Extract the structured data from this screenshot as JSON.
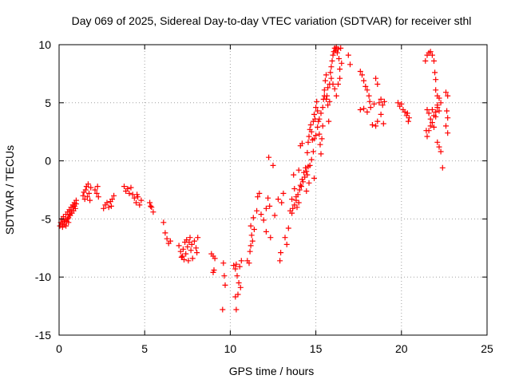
{
  "chart_data": {
    "type": "scatter",
    "title": "Day 069 of 2025, Sidereal Day-to-day VTEC variation (SDTVAR) for receiver sthl",
    "xlabel": "GPS time / hours",
    "ylabel": "SDTVAR / TECUs",
    "xlim": [
      0,
      25
    ],
    "ylim": [
      -15,
      10
    ],
    "grid": true,
    "x_ticks": [
      0,
      5,
      10,
      15,
      20,
      25
    ],
    "y_ticks": [
      -15,
      -10,
      -5,
      0,
      5,
      10
    ],
    "x_tick_labels": [
      "0",
      "5",
      "10",
      "15",
      "20",
      "25"
    ],
    "y_tick_labels": [
      "-15",
      "-10",
      "-5",
      "0",
      "5",
      "10"
    ],
    "marker": "plus",
    "color": "#ff0000",
    "series": [
      {
        "name": "SDTVAR",
        "points": [
          [
            0.05,
            -5.6
          ],
          [
            0.1,
            -5.3
          ],
          [
            0.15,
            -5.0
          ],
          [
            0.2,
            -5.4
          ],
          [
            0.25,
            -4.8
          ],
          [
            0.3,
            -5.5
          ],
          [
            0.35,
            -5.1
          ],
          [
            0.4,
            -4.6
          ],
          [
            0.45,
            -5.2
          ],
          [
            0.5,
            -4.4
          ],
          [
            0.55,
            -4.9
          ],
          [
            0.6,
            -4.2
          ],
          [
            0.65,
            -4.7
          ],
          [
            0.7,
            -4.0
          ],
          [
            0.75,
            -4.5
          ],
          [
            0.8,
            -3.8
          ],
          [
            0.85,
            -4.3
          ],
          [
            0.9,
            -3.6
          ],
          [
            0.95,
            -4.1
          ],
          [
            1.0,
            -3.4
          ],
          [
            0.2,
            -5.7
          ],
          [
            0.3,
            -5.2
          ],
          [
            0.5,
            -5.0
          ],
          [
            0.6,
            -4.6
          ],
          [
            0.7,
            -4.3
          ],
          [
            0.8,
            -4.0
          ],
          [
            0.9,
            -3.9
          ],
          [
            1.0,
            -3.7
          ],
          [
            0.4,
            -5.6
          ],
          [
            0.55,
            -5.3
          ],
          [
            1.4,
            -3.0
          ],
          [
            1.45,
            -2.7
          ],
          [
            1.5,
            -3.3
          ],
          [
            1.55,
            -2.5
          ],
          [
            1.6,
            -2.2
          ],
          [
            1.65,
            -3.1
          ],
          [
            1.7,
            -2.0
          ],
          [
            1.75,
            -2.8
          ],
          [
            1.8,
            -3.4
          ],
          [
            1.85,
            -2.3
          ],
          [
            2.1,
            -2.5
          ],
          [
            2.2,
            -2.8
          ],
          [
            2.3,
            -3.1
          ],
          [
            2.25,
            -2.2
          ],
          [
            2.6,
            -4.1
          ],
          [
            2.7,
            -3.8
          ],
          [
            2.8,
            -3.6
          ],
          [
            2.9,
            -4.0
          ],
          [
            3.0,
            -3.5
          ],
          [
            3.1,
            -3.3
          ],
          [
            3.2,
            -3.0
          ],
          [
            3.05,
            -3.9
          ],
          [
            3.8,
            -2.2
          ],
          [
            3.9,
            -2.6
          ],
          [
            4.0,
            -2.4
          ],
          [
            4.1,
            -2.8
          ],
          [
            4.2,
            -2.3
          ],
          [
            4.3,
            -2.9
          ],
          [
            4.4,
            -3.2
          ],
          [
            4.5,
            -3.6
          ],
          [
            4.6,
            -3.1
          ],
          [
            4.7,
            -3.8
          ],
          [
            4.8,
            -3.4
          ],
          [
            4.55,
            -2.9
          ],
          [
            5.3,
            -3.6
          ],
          [
            5.4,
            -4.0
          ],
          [
            5.5,
            -4.4
          ],
          [
            5.35,
            -3.9
          ],
          [
            6.1,
            -5.3
          ],
          [
            6.2,
            -6.2
          ],
          [
            6.3,
            -6.7
          ],
          [
            6.4,
            -7.1
          ],
          [
            6.5,
            -6.9
          ],
          [
            7.0,
            -7.3
          ],
          [
            7.1,
            -7.8
          ],
          [
            7.2,
            -8.2
          ],
          [
            7.3,
            -8.5
          ],
          [
            7.4,
            -8.0
          ],
          [
            7.5,
            -7.4
          ],
          [
            7.6,
            -7.0
          ],
          [
            7.7,
            -7.7
          ],
          [
            7.8,
            -8.4
          ],
          [
            7.35,
            -7.0
          ],
          [
            7.55,
            -8.6
          ],
          [
            7.45,
            -6.8
          ],
          [
            7.65,
            -6.6
          ],
          [
            7.75,
            -7.2
          ],
          [
            7.9,
            -6.9
          ],
          [
            8.0,
            -7.5
          ],
          [
            8.1,
            -6.6
          ],
          [
            8.05,
            -7.9
          ],
          [
            7.25,
            -7.6
          ],
          [
            7.15,
            -8.3
          ],
          [
            8.9,
            -8.0
          ],
          [
            9.0,
            -8.2
          ],
          [
            9.1,
            -8.4
          ],
          [
            9.05,
            -9.4
          ],
          [
            9.0,
            -9.6
          ],
          [
            9.6,
            -8.8
          ],
          [
            9.65,
            -9.9
          ],
          [
            9.7,
            -10.7
          ],
          [
            9.55,
            -12.8
          ],
          [
            10.2,
            -9.0
          ],
          [
            10.3,
            -9.3
          ],
          [
            10.35,
            -8.9
          ],
          [
            10.4,
            -9.9
          ],
          [
            10.5,
            -10.5
          ],
          [
            10.6,
            -10.9
          ],
          [
            10.45,
            -11.5
          ],
          [
            10.55,
            -9.1
          ],
          [
            10.65,
            -8.6
          ],
          [
            10.3,
            -11.7
          ],
          [
            10.35,
            -12.8
          ],
          [
            11.0,
            -8.6
          ],
          [
            11.1,
            -8.8
          ],
          [
            11.15,
            -7.8
          ],
          [
            11.2,
            -7.3
          ],
          [
            11.3,
            -6.9
          ],
          [
            11.25,
            -6.4
          ],
          [
            11.4,
            -5.9
          ],
          [
            11.2,
            -5.6
          ],
          [
            11.35,
            -4.9
          ],
          [
            11.55,
            -4.3
          ],
          [
            11.6,
            -3.1
          ],
          [
            11.7,
            -2.8
          ],
          [
            11.8,
            -4.6
          ],
          [
            11.95,
            -5.1
          ],
          [
            12.1,
            -4.1
          ],
          [
            12.2,
            -3.2
          ],
          [
            12.25,
            0.3
          ],
          [
            12.5,
            -0.4
          ],
          [
            12.3,
            -3.9
          ],
          [
            12.1,
            -6.1
          ],
          [
            12.35,
            -6.6
          ],
          [
            12.6,
            -4.7
          ],
          [
            12.8,
            -3.3
          ],
          [
            12.9,
            -8.6
          ],
          [
            12.95,
            -7.9
          ],
          [
            13.0,
            -3.6
          ],
          [
            13.1,
            -2.8
          ],
          [
            13.2,
            -6.6
          ],
          [
            13.3,
            -7.2
          ],
          [
            13.4,
            -5.8
          ],
          [
            13.5,
            -4.3
          ],
          [
            13.6,
            -3.3
          ],
          [
            13.7,
            -1.2
          ],
          [
            13.75,
            -2.4
          ],
          [
            13.85,
            -3.1
          ],
          [
            13.9,
            -4.0
          ],
          [
            14.0,
            -3.6
          ],
          [
            14.1,
            -2.1
          ],
          [
            14.2,
            -1.6
          ],
          [
            14.3,
            -1.0
          ],
          [
            14.4,
            -0.6
          ],
          [
            14.45,
            -2.6
          ],
          [
            14.5,
            -1.2
          ],
          [
            14.6,
            -1.9
          ],
          [
            14.65,
            -0.4
          ],
          [
            14.75,
            0.1
          ],
          [
            14.85,
            0.8
          ],
          [
            14.9,
            -1.5
          ],
          [
            14.0,
            -0.8
          ],
          [
            14.1,
            1.3
          ],
          [
            14.2,
            1.5
          ],
          [
            13.6,
            -4.5
          ],
          [
            13.65,
            -4.1
          ],
          [
            13.75,
            -3.8
          ],
          [
            13.85,
            -3.4
          ],
          [
            13.95,
            -2.9
          ],
          [
            14.05,
            -2.5
          ],
          [
            14.15,
            -2.2
          ],
          [
            14.25,
            -1.8
          ],
          [
            14.35,
            -1.4
          ],
          [
            14.45,
            -0.9
          ],
          [
            14.55,
            -0.5
          ],
          [
            14.5,
            0.7
          ],
          [
            14.55,
            1.6
          ],
          [
            14.6,
            2.1
          ],
          [
            14.65,
            2.7
          ],
          [
            14.7,
            3.1
          ],
          [
            14.75,
            2.5
          ],
          [
            14.8,
            1.8
          ],
          [
            14.85,
            3.4
          ],
          [
            14.9,
            4.0
          ],
          [
            14.95,
            3.6
          ],
          [
            15.0,
            4.6
          ],
          [
            15.05,
            5.1
          ],
          [
            15.1,
            4.3
          ],
          [
            15.15,
            3.4
          ],
          [
            15.2,
            2.3
          ],
          [
            15.25,
            1.4
          ],
          [
            15.3,
            0.6
          ],
          [
            15.35,
            1.9
          ],
          [
            15.4,
            3.0
          ],
          [
            15.45,
            5.3
          ],
          [
            15.5,
            6.1
          ],
          [
            15.55,
            6.9
          ],
          [
            15.6,
            7.4
          ],
          [
            15.65,
            5.6
          ],
          [
            15.7,
            4.8
          ],
          [
            15.75,
            3.4
          ],
          [
            15.8,
            6.6
          ],
          [
            15.85,
            7.6
          ],
          [
            15.9,
            8.1
          ],
          [
            15.95,
            8.6
          ],
          [
            16.0,
            9.1
          ],
          [
            16.05,
            9.4
          ],
          [
            16.1,
            9.7
          ],
          [
            16.15,
            9.5
          ],
          [
            16.2,
            9.8
          ],
          [
            16.25,
            9.3
          ],
          [
            16.3,
            9.6
          ],
          [
            16.35,
            8.8
          ],
          [
            16.4,
            7.9
          ],
          [
            16.45,
            9.7
          ],
          [
            16.5,
            8.4
          ],
          [
            15.6,
            5.3
          ],
          [
            15.7,
            6.3
          ],
          [
            15.8,
            5.1
          ],
          [
            15.9,
            7.1
          ],
          [
            16.0,
            6.6
          ],
          [
            16.1,
            6.2
          ],
          [
            16.2,
            5.6
          ],
          [
            16.3,
            6.6
          ],
          [
            16.4,
            7.1
          ],
          [
            15.3,
            4.1
          ],
          [
            15.4,
            4.6
          ],
          [
            15.5,
            5.6
          ],
          [
            15.2,
            3.6
          ],
          [
            15.1,
            2.9
          ],
          [
            15.0,
            2.2
          ],
          [
            14.9,
            1.9
          ],
          [
            16.9,
            9.1
          ],
          [
            17.0,
            8.3
          ],
          [
            17.6,
            7.7
          ],
          [
            17.7,
            7.4
          ],
          [
            17.8,
            6.9
          ],
          [
            17.9,
            6.4
          ],
          [
            18.0,
            6.1
          ],
          [
            18.1,
            5.6
          ],
          [
            18.15,
            5.1
          ],
          [
            17.6,
            4.4
          ],
          [
            17.8,
            4.5
          ],
          [
            18.0,
            4.2
          ],
          [
            18.2,
            4.6
          ],
          [
            18.4,
            4.9
          ],
          [
            18.5,
            3.0
          ],
          [
            18.6,
            3.4
          ],
          [
            18.3,
            3.1
          ],
          [
            18.8,
            5.3
          ],
          [
            18.9,
            4.8
          ],
          [
            19.0,
            5.1
          ],
          [
            18.5,
            7.1
          ],
          [
            18.6,
            6.6
          ],
          [
            18.7,
            5.0
          ],
          [
            18.8,
            4.0
          ],
          [
            18.95,
            3.2
          ],
          [
            19.8,
            5.0
          ],
          [
            19.9,
            4.7
          ],
          [
            20.0,
            4.9
          ],
          [
            20.1,
            4.4
          ],
          [
            20.2,
            4.2
          ],
          [
            20.3,
            3.9
          ],
          [
            20.4,
            3.4
          ],
          [
            20.45,
            3.7
          ],
          [
            20.35,
            4.1
          ],
          [
            21.4,
            8.6
          ],
          [
            21.5,
            9.1
          ],
          [
            21.6,
            9.3
          ],
          [
            21.7,
            9.4
          ],
          [
            21.8,
            9.1
          ],
          [
            21.9,
            8.6
          ],
          [
            21.95,
            7.6
          ],
          [
            21.6,
            4.1
          ],
          [
            21.7,
            3.6
          ],
          [
            21.8,
            4.4
          ],
          [
            21.9,
            3.9
          ],
          [
            22.0,
            4.2
          ],
          [
            22.1,
            4.6
          ],
          [
            21.5,
            2.1
          ],
          [
            21.6,
            2.6
          ],
          [
            21.7,
            3.0
          ],
          [
            21.8,
            3.3
          ],
          [
            21.9,
            2.9
          ],
          [
            22.0,
            3.8
          ],
          [
            22.1,
            4.8
          ],
          [
            22.2,
            4.3
          ],
          [
            22.0,
            6.1
          ],
          [
            22.1,
            5.6
          ],
          [
            22.2,
            5.4
          ],
          [
            22.3,
            5.0
          ],
          [
            22.1,
            1.6
          ],
          [
            22.2,
            1.2
          ],
          [
            22.3,
            0.8
          ],
          [
            22.4,
            -0.6
          ],
          [
            22.0,
            7.0
          ],
          [
            22.6,
            5.9
          ],
          [
            22.7,
            5.6
          ],
          [
            22.65,
            4.3
          ],
          [
            22.7,
            3.7
          ],
          [
            22.6,
            3.0
          ],
          [
            22.7,
            2.4
          ],
          [
            21.5,
            4.4
          ],
          [
            21.45,
            2.6
          ]
        ]
      }
    ]
  }
}
